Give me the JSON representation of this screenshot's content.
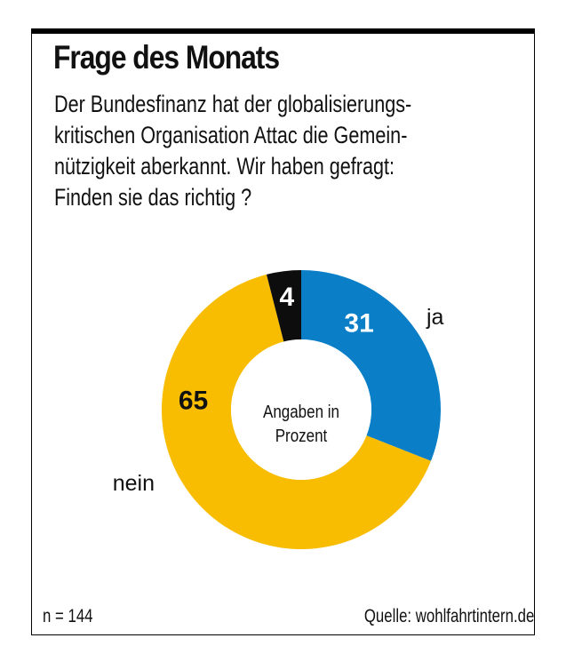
{
  "header": {
    "title": "Frage des Monats",
    "question_lines": [
      "Der Bundesfinanz hat der globalisierungs-",
      "kritischen Organisation Attac die Gemein-",
      "nützigkeit aberkannt. Wir haben gefragt:",
      "Finden sie das richtig ?"
    ]
  },
  "chart_data": {
    "type": "pie",
    "variant": "donut",
    "title": "Frage des Monats",
    "center_label": [
      "Angaben in",
      "Prozent"
    ],
    "unit": "%",
    "start": "12 o'clock, clockwise",
    "slices": [
      {
        "label": "ja",
        "value": 31,
        "color": "#0a7fc8",
        "value_color": "#ffffff",
        "show_label": true
      },
      {
        "label": "nein",
        "value": 65,
        "color": "#f8bc00",
        "value_color": "#111111",
        "show_label": true
      },
      {
        "label": "",
        "value": 4,
        "color": "#0d0d0d",
        "value_color": "#ffffff",
        "show_label": false
      }
    ]
  },
  "footer": {
    "sample": "n = 144",
    "source": "Quelle: wohlfahrtintern.de"
  }
}
